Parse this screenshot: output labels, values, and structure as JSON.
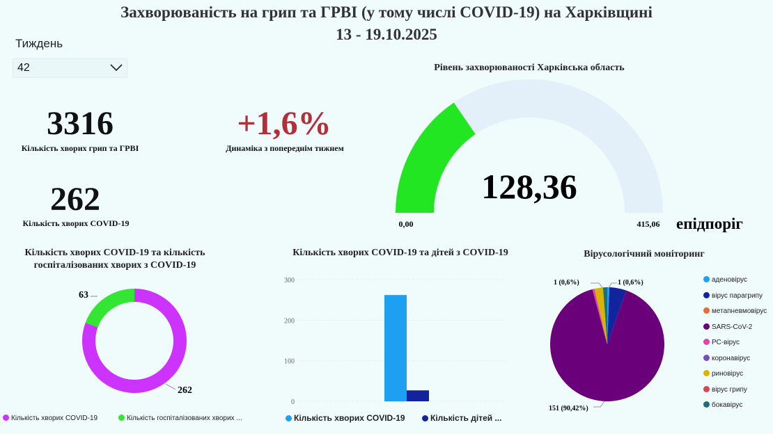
{
  "header": {
    "title": "Захворюваність на грип та ГРВІ (у тому числі COVID-19) на Харківщині",
    "date_range": "13 - 19.10.2025"
  },
  "slicer": {
    "label": "Тиждень",
    "value": "42"
  },
  "kpis": {
    "flu_count": "3316",
    "flu_label": "Кількість хворих грип та ГРВІ",
    "dynamics": "+1,6%",
    "dynamics_label": "Динаміка з попереднім тижнем",
    "covid_count": "262",
    "covid_label": "Кількість хворих COVID-19"
  },
  "colors": {
    "gauge_fill": "#22e622",
    "gauge_track": "#e3f0fa",
    "dynamics": "#b3303a",
    "covid_magenta": "#cc33ff",
    "hosp_green": "#33e633",
    "bar_covid": "#1ea0f2",
    "bar_children": "#12239e"
  },
  "chart_data": [
    {
      "type": "gauge",
      "title": "Рівень захворюваності Харківська область",
      "value": 128.36,
      "value_label": "128,36",
      "min": 0,
      "min_label": "0,00",
      "max": 415.06,
      "max_label": "415,06",
      "target_label": "епідпоріг"
    },
    {
      "type": "pie",
      "subtype": "donut",
      "title": "Кількість хворих COVID-19 та кількість госпіталізованих хворих з COVID-19",
      "slices": [
        {
          "name": "Кількість хворих COVID-19",
          "value": 262,
          "label": "262",
          "color": "#cc33ff"
        },
        {
          "name": "Кількість госпіталізованих хворих ...",
          "value": 63,
          "label": "63",
          "color": "#33e633"
        }
      ]
    },
    {
      "type": "bar",
      "title": "Кількість хворих COVID-19 та дітей з COVID-19",
      "yticks": [
        "0",
        "100",
        "200",
        "300"
      ],
      "ylim": [
        0,
        300
      ],
      "series": [
        {
          "name": "Кількість хворих COVID-19",
          "values": [
            262
          ],
          "color": "#1ea0f2"
        },
        {
          "name": "Кількість дітей ...",
          "values": [
            27
          ],
          "color": "#12239e"
        }
      ]
    },
    {
      "type": "pie",
      "title": "Вірусологічний моніторинг",
      "slices": [
        {
          "name": "аденовірус",
          "value": 1,
          "color": "#1ea0f2"
        },
        {
          "name": "вірус парагрипу",
          "value": 8,
          "color": "#12239e"
        },
        {
          "name": "метапневмовірус",
          "value": 0,
          "color": "#e66c37"
        },
        {
          "name": "SARS-CoV-2",
          "value": 151,
          "color": "#6b007b"
        },
        {
          "name": "РС-вірус",
          "value": 1,
          "color": "#e044a7"
        },
        {
          "name": "коронавірус",
          "value": 0,
          "color": "#744ec2"
        },
        {
          "name": "риновірус",
          "value": 4,
          "color": "#d9b300"
        },
        {
          "name": "вірус грипу",
          "value": 0,
          "color": "#d64550"
        },
        {
          "name": "бокавірус",
          "value": 2,
          "color": "#197278"
        }
      ],
      "data_labels": [
        "1 (0,6%)",
        "1 (0,6%)",
        "151 (90,42%)"
      ]
    }
  ]
}
